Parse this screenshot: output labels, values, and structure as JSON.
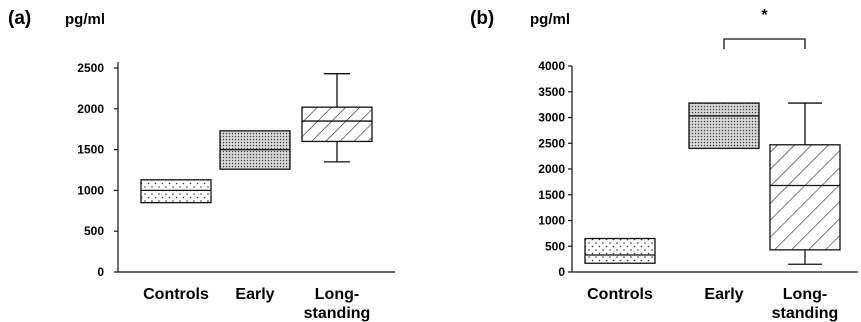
{
  "chart_data": [
    {
      "type": "box",
      "panel_label": "(a)",
      "unit_label": "pg/ml",
      "ylim": [
        0,
        2500
      ],
      "yticks": [
        "0",
        "500",
        "1000",
        "1500",
        "2000",
        "2500"
      ],
      "categories": [
        {
          "label_lines": [
            "Controls"
          ],
          "q1": 850,
          "median": 1000,
          "q3": 1130,
          "whisker_low": null,
          "whisker_high": null,
          "pattern": "dots"
        },
        {
          "label_lines": [
            "Early"
          ],
          "q1": 1260,
          "median": 1500,
          "q3": 1730,
          "whisker_low": null,
          "whisker_high": null,
          "pattern": "dense"
        },
        {
          "label_lines": [
            "Long-",
            "standing"
          ],
          "q1": 1600,
          "median": 1850,
          "q3": 2020,
          "whisker_low": 1350,
          "whisker_high": 2430,
          "pattern": "hatch"
        }
      ]
    },
    {
      "type": "box",
      "panel_label": "(b)",
      "unit_label": "pg/ml",
      "ylim": [
        0,
        4000
      ],
      "yticks": [
        "0",
        "500",
        "1000",
        "1500",
        "2000",
        "2500",
        "3000",
        "3500",
        "4000"
      ],
      "significance": {
        "between": [
          1,
          2
        ],
        "label": "*"
      },
      "categories": [
        {
          "label_lines": [
            "Controls"
          ],
          "q1": 170,
          "median": 330,
          "q3": 650,
          "whisker_low": null,
          "whisker_high": null,
          "pattern": "dots"
        },
        {
          "label_lines": [
            "Early"
          ],
          "q1": 2400,
          "median": 3030,
          "q3": 3280,
          "whisker_low": null,
          "whisker_high": null,
          "pattern": "dense"
        },
        {
          "label_lines": [
            "Long-",
            "standing"
          ],
          "q1": 430,
          "median": 1680,
          "q3": 2470,
          "whisker_low": 150,
          "whisker_high": 3280,
          "pattern": "hatch"
        }
      ]
    }
  ]
}
